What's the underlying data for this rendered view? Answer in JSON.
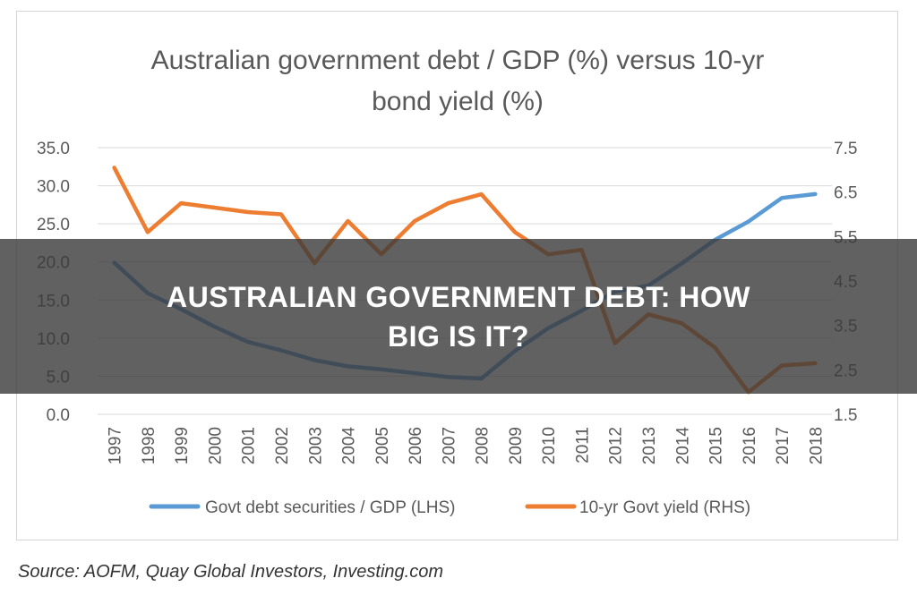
{
  "chart_data": {
    "type": "line",
    "title_lines": [
      "Australian government debt / GDP (%) versus 10-yr",
      "bond yield (%)"
    ],
    "x": [
      "1997",
      "1998",
      "1999",
      "2000",
      "2001",
      "2002",
      "2003",
      "2004",
      "2005",
      "2006",
      "2007",
      "2008",
      "2009",
      "2010",
      "2011",
      "2012",
      "2013",
      "2014",
      "2015",
      "2016",
      "2017",
      "2018"
    ],
    "y_left": {
      "range": [
        0,
        35
      ],
      "ticks": [
        "0.0",
        "5.0",
        "10.0",
        "15.0",
        "20.0",
        "25.0",
        "30.0",
        "35.0"
      ]
    },
    "y_right": {
      "range": [
        1.5,
        7.5
      ],
      "ticks": [
        "1.5",
        "2.5",
        "3.5",
        "4.5",
        "5.5",
        "6.5",
        "7.5"
      ]
    },
    "series": [
      {
        "name": "Govt debt securities / GDP (LHS)",
        "axis": "left",
        "color": "#5b9bd5",
        "values": [
          19.9,
          15.9,
          13.8,
          11.5,
          9.5,
          8.4,
          7.1,
          6.3,
          5.9,
          5.4,
          4.9,
          4.7,
          8.3,
          11.3,
          13.6,
          16.1,
          16.9,
          19.8,
          22.9,
          25.3,
          28.4,
          28.9
        ]
      },
      {
        "name": "10-yr Govt yield (RHS)",
        "axis": "right",
        "color": "#ed7d31",
        "values": [
          7.05,
          5.6,
          6.25,
          6.15,
          6.05,
          6.0,
          4.9,
          5.85,
          5.1,
          5.85,
          6.25,
          6.45,
          5.6,
          5.1,
          5.2,
          3.1,
          3.75,
          3.55,
          3.0,
          2.0,
          2.6,
          2.65
        ]
      }
    ],
    "grid": true,
    "legend": "bottom"
  },
  "source": "Source: AOFM, Quay Global Investors, Investing.com",
  "banner": {
    "line1": "AUSTRALIAN GOVERNMENT DEBT: HOW",
    "line2": "BIG IS IT?"
  }
}
